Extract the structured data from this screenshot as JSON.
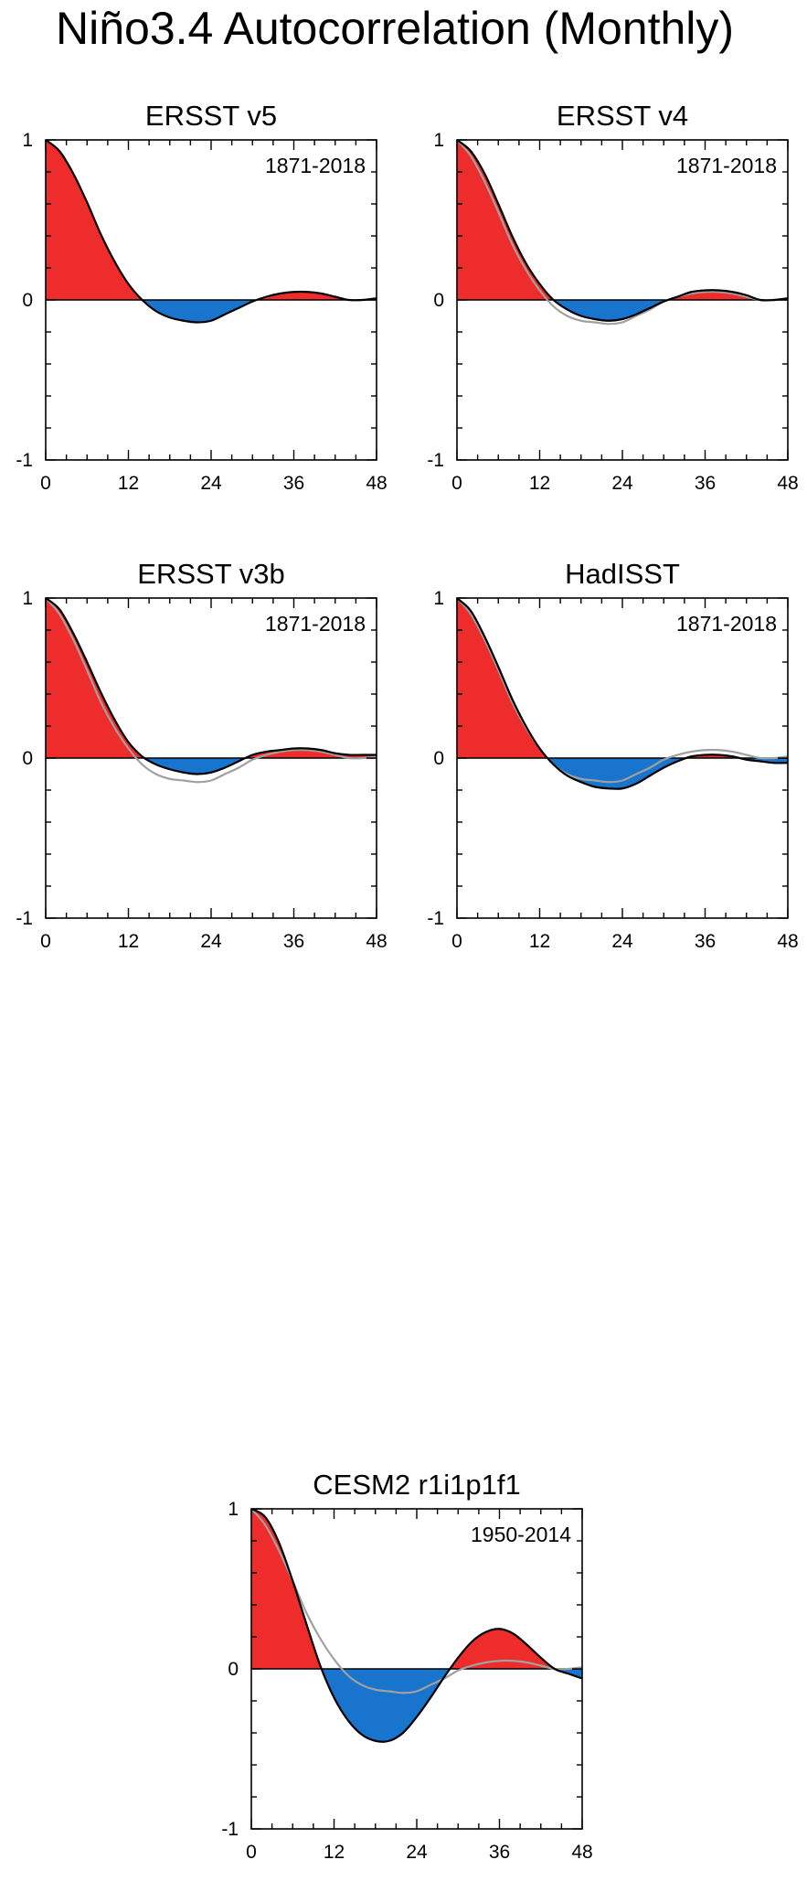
{
  "figure": {
    "title": "Niño3.4 Autocorrelation (Monthly)",
    "colors": {
      "positive_fill": "#ee2c2c",
      "negative_fill": "#1874cd",
      "main_line": "#000000",
      "reference_line": "#a0a0a0"
    }
  },
  "chart_data": [
    {
      "type": "area",
      "title": "ERSST v5",
      "period": "1871-2018",
      "xlim": [
        0,
        48
      ],
      "ylim": [
        -1,
        1
      ],
      "x_ticks": [
        0,
        12,
        24,
        36,
        48
      ],
      "y_ticks": [
        -1,
        0,
        1
      ],
      "series": [
        {
          "x": [
            0,
            2,
            4,
            6,
            8,
            10,
            12,
            14,
            16,
            18,
            20,
            22,
            24,
            26,
            28,
            30,
            32,
            34,
            36,
            38,
            40,
            42,
            44,
            46,
            48
          ],
          "y": [
            1,
            0.93,
            0.79,
            0.61,
            0.41,
            0.24,
            0.1,
            0.0,
            -0.07,
            -0.11,
            -0.13,
            -0.14,
            -0.13,
            -0.09,
            -0.05,
            -0.01,
            0.02,
            0.04,
            0.05,
            0.05,
            0.04,
            0.02,
            0.0,
            0.0,
            0.01
          ]
        }
      ]
    },
    {
      "type": "area",
      "title": "ERSST v4",
      "period": "1871-2018",
      "xlim": [
        0,
        48
      ],
      "ylim": [
        -1,
        1
      ],
      "x_ticks": [
        0,
        12,
        24,
        36,
        48
      ],
      "y_ticks": [
        -1,
        0,
        1
      ],
      "series": [
        {
          "x": [
            0,
            2,
            4,
            6,
            8,
            10,
            12,
            14,
            16,
            18,
            20,
            22,
            24,
            26,
            28,
            30,
            32,
            34,
            36,
            38,
            40,
            42,
            44,
            46,
            48
          ],
          "y": [
            1,
            0.93,
            0.79,
            0.6,
            0.4,
            0.23,
            0.1,
            0.0,
            -0.06,
            -0.1,
            -0.12,
            -0.13,
            -0.12,
            -0.09,
            -0.05,
            -0.01,
            0.02,
            0.05,
            0.06,
            0.06,
            0.05,
            0.03,
            0.0,
            0.0,
            0.01
          ]
        },
        {
          "x": [
            0,
            2,
            4,
            6,
            8,
            10,
            12,
            14,
            16,
            18,
            20,
            22,
            24,
            26,
            28,
            30,
            32,
            34,
            36,
            38,
            40,
            42,
            44,
            46,
            48
          ],
          "y": [
            1,
            0.9,
            0.74,
            0.55,
            0.35,
            0.19,
            0.06,
            -0.04,
            -0.1,
            -0.13,
            -0.14,
            -0.15,
            -0.14,
            -0.1,
            -0.06,
            -0.01,
            0.02,
            0.04,
            0.05,
            0.05,
            0.04,
            0.02,
            0.0,
            0.0,
            0.01
          ]
        }
      ]
    },
    {
      "type": "area",
      "title": "ERSST v3b",
      "period": "1871-2018",
      "xlim": [
        0,
        48
      ],
      "ylim": [
        -1,
        1
      ],
      "x_ticks": [
        0,
        12,
        24,
        36,
        48
      ],
      "y_ticks": [
        -1,
        0,
        1
      ],
      "series": [
        {
          "x": [
            0,
            2,
            4,
            6,
            8,
            10,
            12,
            14,
            16,
            18,
            20,
            22,
            24,
            26,
            28,
            30,
            32,
            34,
            36,
            38,
            40,
            42,
            44,
            46,
            48
          ],
          "y": [
            1,
            0.93,
            0.78,
            0.6,
            0.41,
            0.24,
            0.1,
            0.01,
            -0.04,
            -0.07,
            -0.09,
            -0.1,
            -0.09,
            -0.06,
            -0.02,
            0.02,
            0.04,
            0.05,
            0.06,
            0.06,
            0.05,
            0.03,
            0.02,
            0.02,
            0.02
          ]
        },
        {
          "x": [
            0,
            2,
            4,
            6,
            8,
            10,
            12,
            14,
            16,
            18,
            20,
            22,
            24,
            26,
            28,
            30,
            32,
            34,
            36,
            38,
            40,
            42,
            44,
            46,
            48
          ],
          "y": [
            1,
            0.9,
            0.74,
            0.55,
            0.35,
            0.19,
            0.06,
            -0.04,
            -0.1,
            -0.13,
            -0.14,
            -0.15,
            -0.14,
            -0.1,
            -0.06,
            -0.01,
            0.02,
            0.04,
            0.05,
            0.05,
            0.04,
            0.02,
            0.0,
            0.0,
            0.01
          ]
        }
      ]
    },
    {
      "type": "area",
      "title": "HadISST",
      "period": "1871-2018",
      "xlim": [
        0,
        48
      ],
      "ylim": [
        -1,
        1
      ],
      "x_ticks": [
        0,
        12,
        24,
        36,
        48
      ],
      "y_ticks": [
        -1,
        0,
        1
      ],
      "series": [
        {
          "x": [
            0,
            2,
            4,
            6,
            8,
            10,
            12,
            14,
            16,
            18,
            20,
            22,
            24,
            26,
            28,
            30,
            32,
            34,
            36,
            38,
            40,
            42,
            44,
            46,
            48
          ],
          "y": [
            1,
            0.92,
            0.76,
            0.57,
            0.37,
            0.2,
            0.06,
            -0.04,
            -0.11,
            -0.15,
            -0.18,
            -0.19,
            -0.19,
            -0.16,
            -0.11,
            -0.06,
            -0.02,
            0.01,
            0.02,
            0.02,
            0.01,
            -0.01,
            -0.02,
            -0.03,
            -0.03
          ]
        },
        {
          "x": [
            0,
            2,
            4,
            6,
            8,
            10,
            12,
            14,
            16,
            18,
            20,
            22,
            24,
            26,
            28,
            30,
            32,
            34,
            36,
            38,
            40,
            42,
            44,
            46,
            48
          ],
          "y": [
            1,
            0.9,
            0.74,
            0.55,
            0.35,
            0.19,
            0.06,
            -0.04,
            -0.1,
            -0.13,
            -0.14,
            -0.15,
            -0.14,
            -0.1,
            -0.06,
            -0.01,
            0.02,
            0.04,
            0.05,
            0.05,
            0.04,
            0.02,
            0.0,
            0.0,
            0.01
          ]
        }
      ]
    },
    {
      "type": "area",
      "title": "CESM2 r1i1p1f1",
      "period": "1950-2014",
      "xlim": [
        0,
        48
      ],
      "ylim": [
        -1,
        1
      ],
      "x_ticks": [
        0,
        12,
        24,
        36,
        48
      ],
      "y_ticks": [
        -1,
        0,
        1
      ],
      "series": [
        {
          "x": [
            0,
            2,
            4,
            6,
            8,
            10,
            12,
            14,
            16,
            18,
            20,
            22,
            24,
            26,
            28,
            30,
            32,
            34,
            36,
            38,
            40,
            42,
            44,
            46,
            48
          ],
          "y": [
            1,
            0.95,
            0.79,
            0.55,
            0.28,
            0.02,
            -0.18,
            -0.32,
            -0.41,
            -0.45,
            -0.45,
            -0.4,
            -0.3,
            -0.18,
            -0.05,
            0.07,
            0.17,
            0.23,
            0.25,
            0.22,
            0.15,
            0.07,
            0.0,
            -0.03,
            -0.06
          ]
        },
        {
          "x": [
            0,
            2,
            4,
            6,
            8,
            10,
            12,
            14,
            16,
            18,
            20,
            22,
            24,
            26,
            28,
            30,
            32,
            34,
            36,
            38,
            40,
            42,
            44,
            46,
            48
          ],
          "y": [
            1,
            0.9,
            0.74,
            0.55,
            0.35,
            0.19,
            0.06,
            -0.04,
            -0.1,
            -0.13,
            -0.14,
            -0.15,
            -0.14,
            -0.1,
            -0.06,
            -0.01,
            0.02,
            0.04,
            0.05,
            0.05,
            0.04,
            0.02,
            0.0,
            0.0,
            0.01
          ]
        }
      ]
    }
  ]
}
